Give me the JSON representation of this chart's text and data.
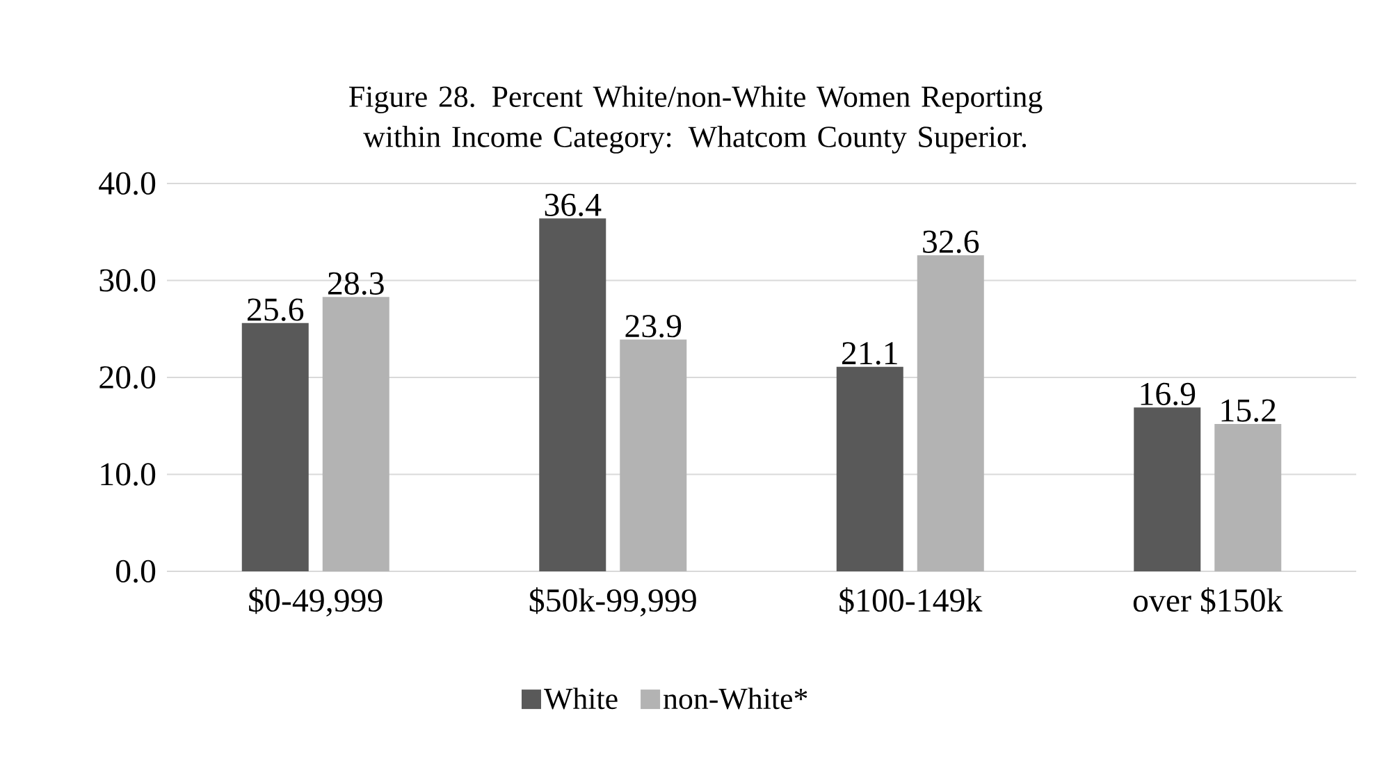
{
  "chart_data": {
    "type": "bar",
    "title": "Figure 28. Percent White/non-White Women Reporting within Income Category: Whatcom County Superior.",
    "categories": [
      "$0-49,999",
      "$50k-99,999",
      "$100-149k",
      "over $150k"
    ],
    "series": [
      {
        "name": "White",
        "color": "#595959",
        "values": [
          25.6,
          36.4,
          21.1,
          16.9
        ]
      },
      {
        "name": "non-White*",
        "color": "#b3b3b3",
        "values": [
          28.3,
          23.9,
          32.6,
          15.2
        ]
      }
    ],
    "ylim": [
      0,
      40
    ],
    "yticks": [
      {
        "value": 0,
        "label": "0.0"
      },
      {
        "value": 10,
        "label": "10.0"
      },
      {
        "value": 20,
        "label": "20.0"
      },
      {
        "value": 30,
        "label": "30.0"
      },
      {
        "value": 40,
        "label": "40.0"
      }
    ],
    "grid": "y",
    "legend": "bottom",
    "data_labels": true
  }
}
